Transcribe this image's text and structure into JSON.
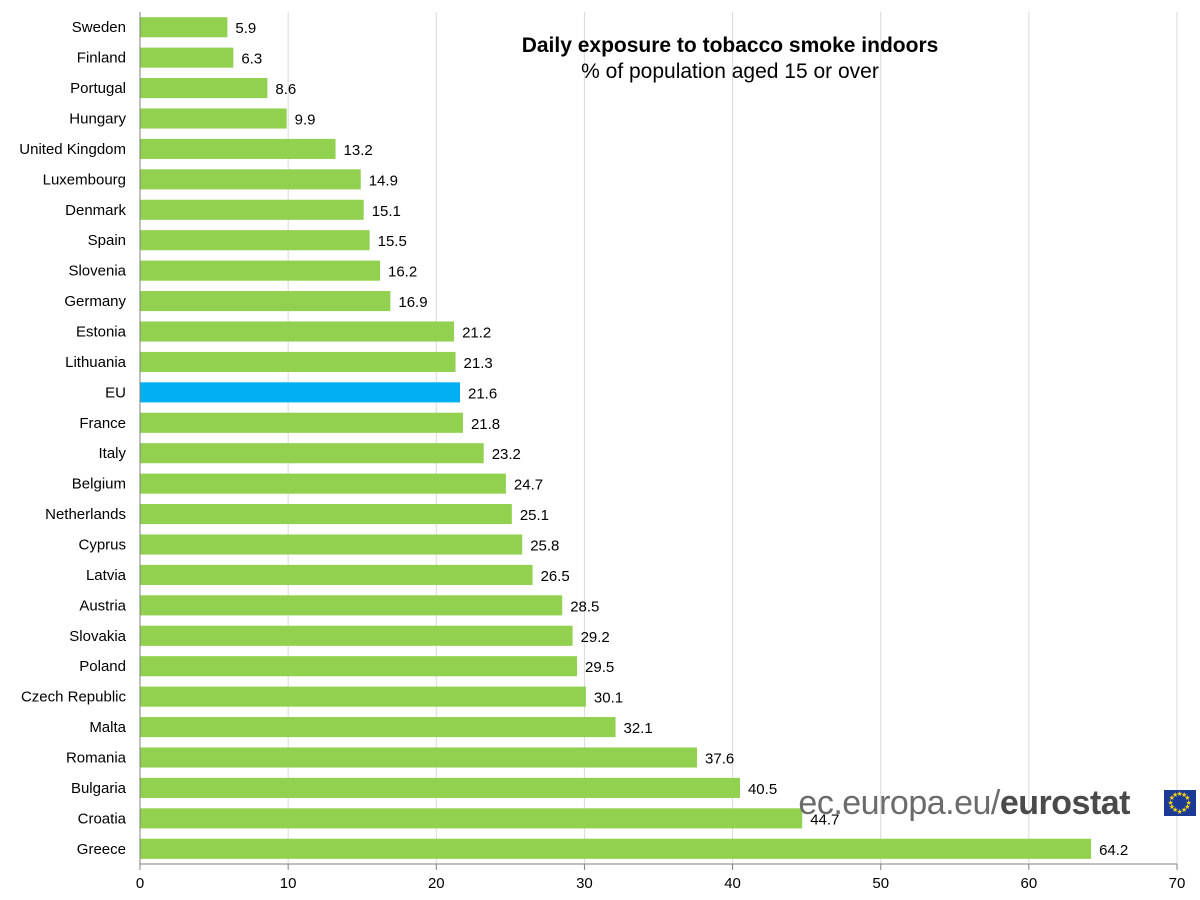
{
  "chart_data": {
    "type": "bar",
    "orientation": "horizontal",
    "title": "Daily exposure to tobacco smoke indoors",
    "subtitle": "% of population aged 15 or over",
    "xlim": [
      0,
      70
    ],
    "xticks": [
      0,
      10,
      20,
      30,
      40,
      50,
      60,
      70
    ],
    "grid": true,
    "colors": {
      "bar": "#92d050",
      "highlight": "#00b0f0",
      "grid": "#d9d9d9"
    },
    "highlight_category": "EU",
    "categories": [
      "Sweden",
      "Finland",
      "Portugal",
      "Hungary",
      "United Kingdom",
      "Luxembourg",
      "Denmark",
      "Spain",
      "Slovenia",
      "Germany",
      "Estonia",
      "Lithuania",
      "EU",
      "France",
      "Italy",
      "Belgium",
      "Netherlands",
      "Cyprus",
      "Latvia",
      "Austria",
      "Slovakia",
      "Poland",
      "Czech Republic",
      "Malta",
      "Romania",
      "Bulgaria",
      "Croatia",
      "Greece"
    ],
    "values": [
      5.9,
      6.3,
      8.6,
      9.9,
      13.2,
      14.9,
      15.1,
      15.5,
      16.2,
      16.9,
      21.2,
      21.3,
      21.6,
      21.8,
      23.2,
      24.7,
      25.1,
      25.8,
      26.5,
      28.5,
      29.2,
      29.5,
      30.1,
      32.1,
      37.6,
      40.5,
      44.7,
      64.2
    ]
  },
  "branding": {
    "domain_text": "ec.europa.eu/",
    "brand_text": "eurostat",
    "logo_icon": "eu-flag-icon"
  }
}
